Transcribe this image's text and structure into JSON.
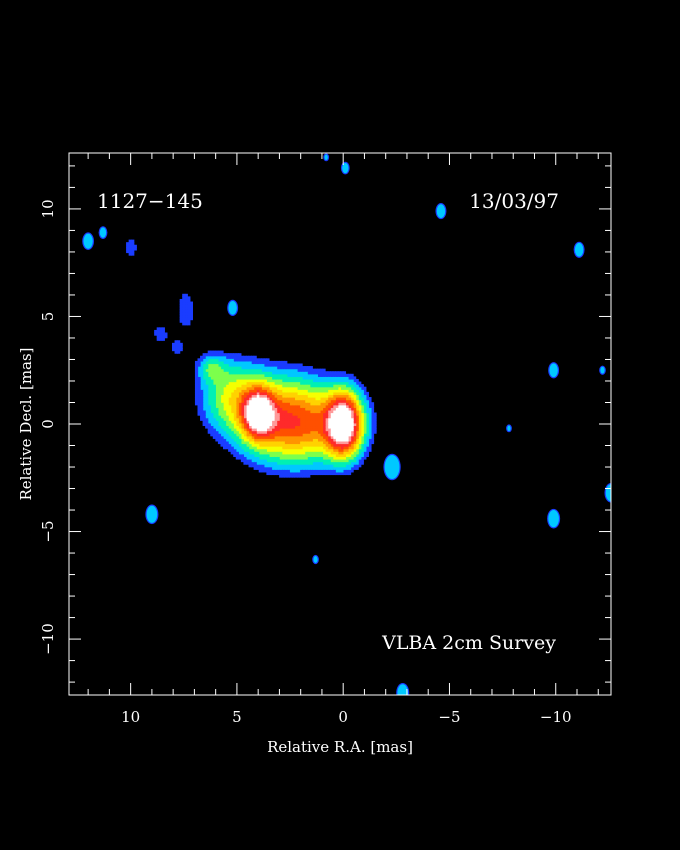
{
  "chart_data": {
    "type": "heatmap",
    "source_name": "1127−145",
    "date": "13/03/97",
    "survey": "VLBA 2cm Survey",
    "xlabel": "Relative R.A. [mas]",
    "ylabel": "Relative Decl. [mas]",
    "xlim": [
      12.9,
      -12.6
    ],
    "ylim": [
      -12.6,
      12.6
    ],
    "x_ticks": [
      {
        "value": 10,
        "label": "10"
      },
      {
        "value": 5,
        "label": "5"
      },
      {
        "value": 0,
        "label": "0"
      },
      {
        "value": -5,
        "label": "−5"
      },
      {
        "value": -10,
        "label": "−10"
      }
    ],
    "y_ticks": [
      {
        "value": 10,
        "label": "10"
      },
      {
        "value": 5,
        "label": "5"
      },
      {
        "value": 0,
        "label": "0"
      },
      {
        "value": -5,
        "label": "−5"
      },
      {
        "value": -10,
        "label": "−10"
      }
    ],
    "minor_tick_step": 1,
    "colormap": [
      "#1a3cff",
      "#00c8ff",
      "#00f0b4",
      "#7cff4c",
      "#f5ff00",
      "#ffd200",
      "#ff9400",
      "#ff5000",
      "#ff2a2a",
      "#ff9a9a",
      "#ffffff"
    ],
    "components": [
      {
        "x": 0.0,
        "y": 0.0,
        "sx": 0.55,
        "sy": 0.95,
        "amp": 1.0
      },
      {
        "x": 4.0,
        "y": 0.5,
        "sx": 0.5,
        "sy": 0.75,
        "amp": 0.78
      },
      {
        "x": 1.6,
        "y": 0.0,
        "sx": 1.6,
        "sy": 1.2,
        "amp": 0.4
      },
      {
        "x": 3.0,
        "y": 0.3,
        "sx": 1.4,
        "sy": 1.3,
        "amp": 0.4
      },
      {
        "x": 5.2,
        "y": 1.3,
        "sx": 1.0,
        "sy": 1.1,
        "amp": 0.32
      },
      {
        "x": 6.2,
        "y": 2.6,
        "sx": 0.45,
        "sy": 0.45,
        "amp": 0.2
      },
      {
        "x": 7.4,
        "y": 5.3,
        "sx": 0.35,
        "sy": 0.8,
        "amp": 0.12
      },
      {
        "x": 8.6,
        "y": 4.2,
        "sx": 0.35,
        "sy": 0.5,
        "amp": 0.1
      },
      {
        "x": 7.8,
        "y": 3.5,
        "sx": 0.3,
        "sy": 0.4,
        "amp": 0.09
      },
      {
        "x": 10.0,
        "y": 8.2,
        "sx": 0.35,
        "sy": 0.5,
        "amp": 0.1
      }
    ],
    "noise_spots": [
      {
        "x": 12.0,
        "y": 8.5,
        "r": 0.22
      },
      {
        "x": 11.3,
        "y": 8.9,
        "r": 0.15
      },
      {
        "x": 9.0,
        "y": -4.2,
        "r": 0.25
      },
      {
        "x": 5.2,
        "y": 5.4,
        "r": 0.2
      },
      {
        "x": -4.6,
        "y": 9.9,
        "r": 0.2
      },
      {
        "x": -11.1,
        "y": 8.1,
        "r": 0.2
      },
      {
        "x": -2.3,
        "y": -2.0,
        "r": 0.35
      },
      {
        "x": -9.9,
        "y": 2.5,
        "r": 0.2
      },
      {
        "x": -9.9,
        "y": -4.4,
        "r": 0.25
      },
      {
        "x": -12.6,
        "y": -3.2,
        "r": 0.25
      },
      {
        "x": -2.8,
        "y": -12.5,
        "r": 0.25
      },
      {
        "x": -0.1,
        "y": 11.9,
        "r": 0.15
      },
      {
        "x": 1.3,
        "y": -6.3,
        "r": 0.1
      },
      {
        "x": -7.8,
        "y": -0.2,
        "r": 0.08
      },
      {
        "x": 0.8,
        "y": 12.4,
        "r": 0.08
      },
      {
        "x": -12.2,
        "y": 2.5,
        "r": 0.1
      }
    ]
  }
}
